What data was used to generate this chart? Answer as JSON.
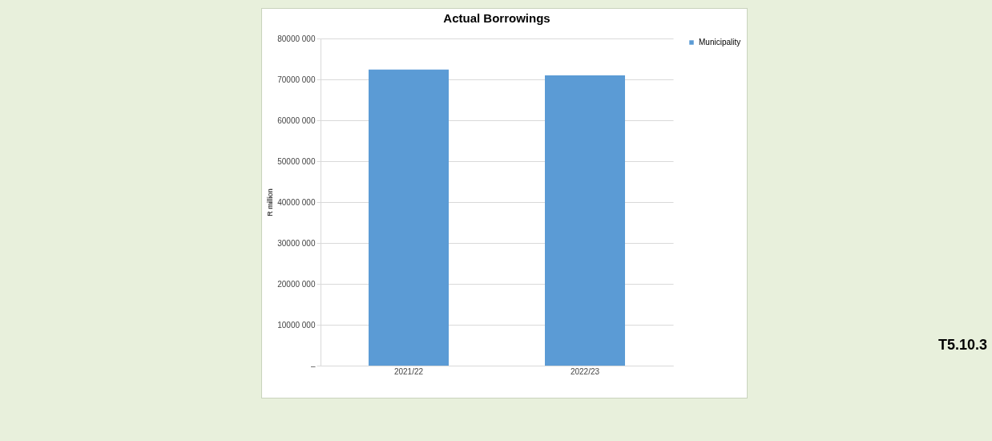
{
  "chart_data": {
    "type": "bar",
    "title": "Actual Borrowings",
    "ylabel": "R million",
    "categories": [
      "2021/22",
      "2022/23"
    ],
    "series": [
      {
        "name": "Municipality",
        "color": "#5b9bd5",
        "values": [
          72400000,
          71000000
        ]
      }
    ],
    "ylim": [
      0,
      80000000
    ],
    "yticks": [
      {
        "value": 0,
        "label": "–"
      },
      {
        "value": 10000000,
        "label": "10000 000"
      },
      {
        "value": 20000000,
        "label": "20000 000"
      },
      {
        "value": 30000000,
        "label": "30000 000"
      },
      {
        "value": 40000000,
        "label": "40000 000"
      },
      {
        "value": 50000000,
        "label": "50000 000"
      },
      {
        "value": 60000000,
        "label": "60000 000"
      },
      {
        "value": 70000000,
        "label": "70000 000"
      },
      {
        "value": 80000000,
        "label": "80000 000"
      }
    ],
    "grid": "y",
    "legend": "right",
    "annotations": [
      "T5.10.3"
    ]
  }
}
